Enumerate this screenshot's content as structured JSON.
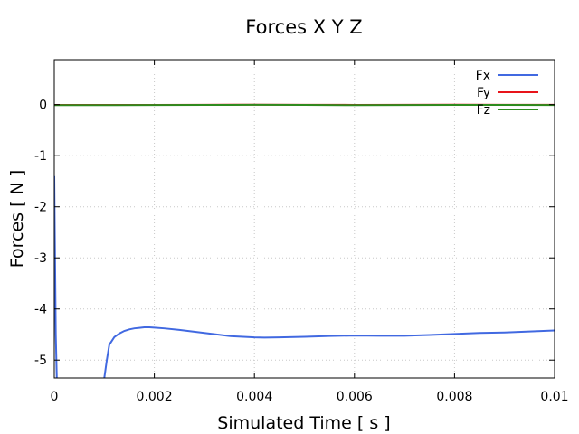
{
  "chart_data": {
    "type": "line",
    "title": "Forces X Y Z",
    "xlabel": "Simulated Time [ s ]",
    "ylabel": "Forces [ N ]",
    "xlim": [
      0,
      0.01
    ],
    "ylim": [
      -5.35,
      0.88
    ],
    "xticks": [
      0,
      0.002,
      0.004,
      0.006,
      0.008,
      0.01
    ],
    "xtick_labels": [
      "0",
      "0.002",
      "0.004",
      "0.006",
      "0.008",
      "0.01"
    ],
    "yticks": [
      0,
      -1,
      -2,
      -3,
      -4,
      -5
    ],
    "ytick_labels": [
      "0",
      "-1",
      "-2",
      "-3",
      "-4",
      "-5"
    ],
    "grid": true,
    "legend_position": "top-right",
    "series": [
      {
        "name": "Fx",
        "color": "#4169e1",
        "x": [
          0,
          1e-05,
          3e-05,
          5e-05
        ],
        "y": [
          -1.4,
          -2.5,
          -4.5,
          -5.35
        ],
        "segment2": {
          "x": [
            0.001,
            0.00105,
            0.0011,
            0.0012,
            0.0013,
            0.0014,
            0.0015,
            0.0016,
            0.0017,
            0.0018,
            0.0019,
            0.002,
            0.0022,
            0.0025,
            0.003,
            0.0035,
            0.004,
            0.0042,
            0.0045,
            0.005,
            0.0055,
            0.006,
            0.0065,
            0.007,
            0.0075,
            0.008,
            0.0085,
            0.009,
            0.0095,
            0.01
          ],
          "y": [
            -5.35,
            -5.0,
            -4.7,
            -4.55,
            -4.48,
            -4.43,
            -4.4,
            -4.38,
            -4.37,
            -4.36,
            -4.36,
            -4.365,
            -4.38,
            -4.41,
            -4.47,
            -4.53,
            -4.555,
            -4.56,
            -4.555,
            -4.545,
            -4.53,
            -4.52,
            -4.525,
            -4.525,
            -4.51,
            -4.49,
            -4.47,
            -4.46,
            -4.44,
            -4.42
          ]
        }
      },
      {
        "name": "Fy",
        "color": "#e8141a",
        "x": [
          0,
          0.001,
          0.002,
          0.003,
          0.004,
          0.005,
          0.006,
          0.007,
          0.008,
          0.009,
          0.01
        ],
        "y": [
          -0.005,
          -0.005,
          -0.004,
          -0.003,
          0.0,
          -0.002,
          -0.004,
          -0.003,
          -0.001,
          -0.002,
          -0.003
        ]
      },
      {
        "name": "Fz",
        "color": "#2e8b1f",
        "x": [
          0,
          0.001,
          0.002,
          0.003,
          0.004,
          0.005,
          0.006,
          0.007,
          0.008,
          0.009,
          0.01
        ],
        "y": [
          -0.01,
          -0.01,
          -0.008,
          -0.006,
          -0.002,
          -0.004,
          -0.01,
          -0.008,
          -0.004,
          -0.005,
          -0.007
        ]
      }
    ]
  }
}
